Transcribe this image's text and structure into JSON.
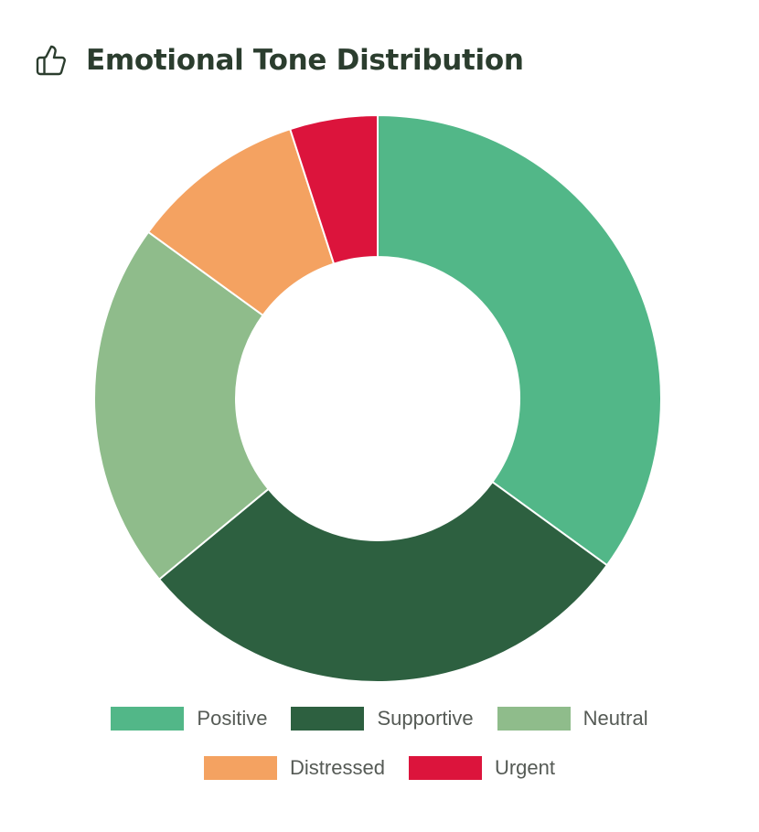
{
  "card": {
    "title": "Emotional Tone Distribution",
    "icon": "thumbs-up-icon"
  },
  "colors": {
    "title_text": "#2b3d2e",
    "legend_text": "#555a55"
  },
  "chart_data": {
    "type": "pie",
    "style": "doughnut",
    "title": "Emotional Tone Distribution",
    "categories": [
      "Positive",
      "Supportive",
      "Neutral",
      "Distressed",
      "Urgent"
    ],
    "values": [
      35,
      29,
      21,
      10,
      5
    ],
    "colors": [
      "#52b788",
      "#2d6040",
      "#8fbc8b",
      "#f4a261",
      "#dc143c"
    ],
    "legend_position": "bottom"
  }
}
